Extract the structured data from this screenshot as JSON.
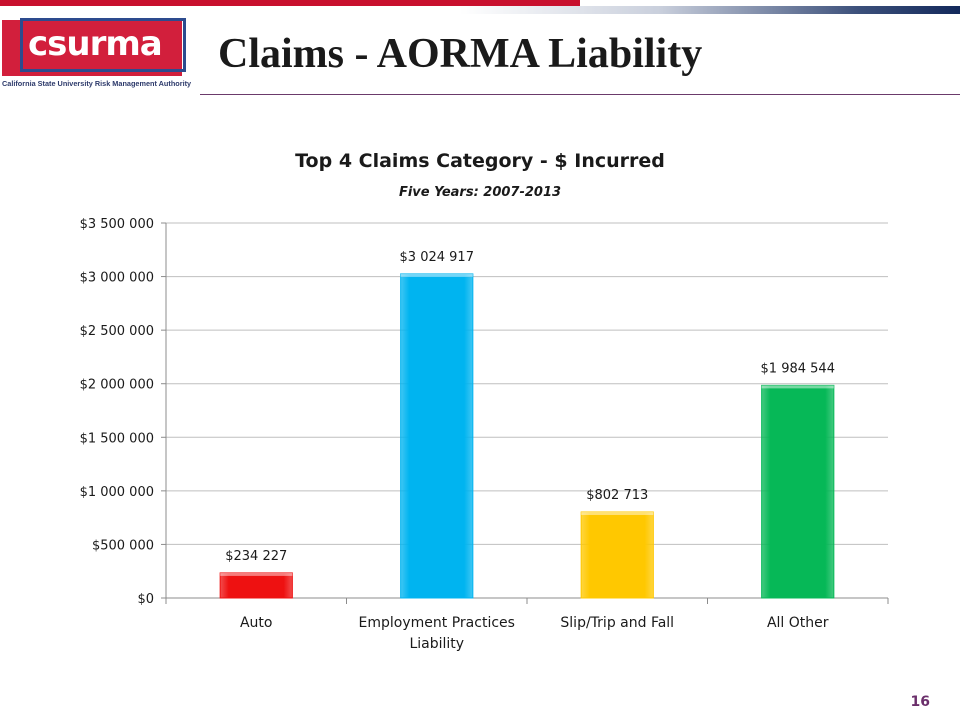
{
  "header": {
    "logo_text": "csurma",
    "logo_subtitle": "California State University Risk Management Authority",
    "title": "Claims - AORMA Liability"
  },
  "page_number": "16",
  "colors": {
    "accent_red": "#c8102e",
    "accent_navy": "#13295b",
    "gridline": "#bfbfbf"
  },
  "chart_data": {
    "type": "bar",
    "title": "Top 4 Claims Category - $ Incurred",
    "subtitle": "Five Years: 2007-2013",
    "xlabel": "",
    "ylabel": "",
    "categories": [
      "Auto",
      "Employment Practices Liability",
      "Slip/Trip and Fall",
      "All Other"
    ],
    "category_label_lines": [
      [
        "Auto"
      ],
      [
        "Employment Practices",
        "Liability"
      ],
      [
        "Slip/Trip and Fall"
      ],
      [
        "All Other"
      ]
    ],
    "values": [
      234227,
      3024917,
      802713,
      1984544
    ],
    "data_labels": [
      "$234 227",
      "$3 024 917",
      "$802 713",
      "$1 984 544"
    ],
    "bar_colors": [
      "#ee1111",
      "#00b4f0",
      "#ffc800",
      "#06b857"
    ],
    "ylim": [
      0,
      3500000
    ],
    "yticks": [
      0,
      500000,
      1000000,
      1500000,
      2000000,
      2500000,
      3000000,
      3500000
    ],
    "ytick_labels": [
      "$0",
      "$500 000",
      "$1 000 000",
      "$1 500 000",
      "$2 000 000",
      "$2 500 000",
      "$3 000 000",
      "$3 500 000"
    ],
    "grid": true,
    "legend": "none"
  }
}
